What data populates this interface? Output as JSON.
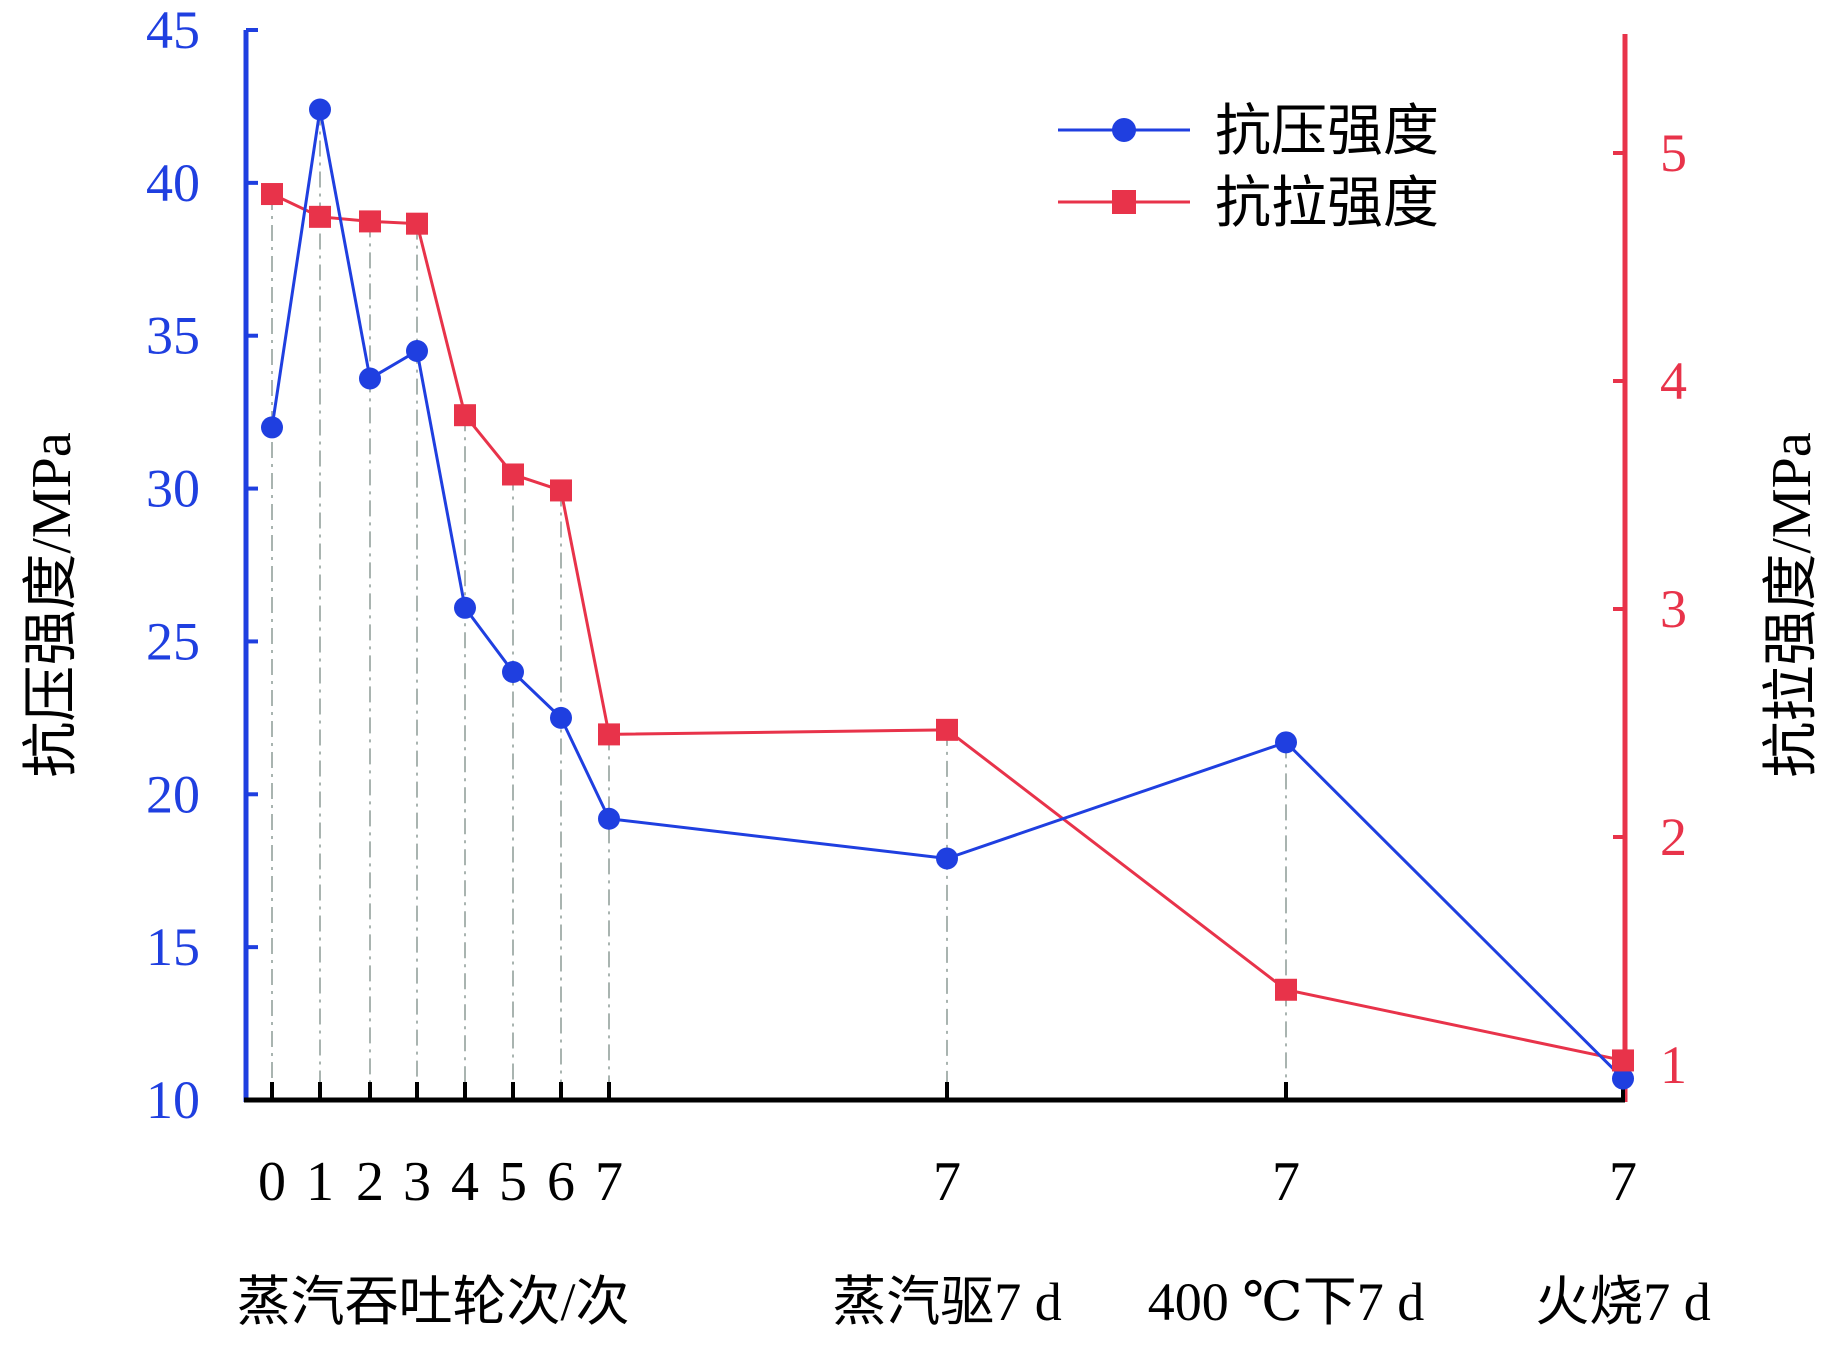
{
  "chart_data": {
    "type": "line",
    "y_left": {
      "label": "抗压强度/MPa",
      "ylim": [
        10,
        45
      ],
      "ticks": [
        10,
        15,
        20,
        25,
        30,
        35,
        40,
        45
      ]
    },
    "y_right": {
      "label": "抗拉强度/MPa",
      "ylim": [
        0.88,
        5.58
      ],
      "ticks": [
        1,
        2,
        3,
        4,
        5
      ]
    },
    "x_tick_labels": [
      "0",
      "1",
      "2",
      "3",
      "4",
      "5",
      "6",
      "7",
      "7",
      "7",
      "7"
    ],
    "x_group_labels": [
      "蒸汽吞吐轮次/次",
      "蒸汽驱7 d",
      "400 ℃下7 d",
      "火烧7 d"
    ],
    "series": [
      {
        "name": "抗压强度",
        "axis": "left",
        "marker": "circle",
        "values": [
          32.0,
          42.4,
          33.6,
          34.5,
          26.1,
          24.0,
          22.5,
          19.2,
          17.9,
          21.7,
          10.7
        ]
      },
      {
        "name": "抗拉强度",
        "axis": "right",
        "marker": "square",
        "values": [
          4.82,
          4.72,
          4.7,
          4.69,
          3.85,
          3.59,
          3.52,
          2.45,
          2.47,
          1.33,
          1.02
        ]
      }
    ],
    "legend_position": "top-right",
    "colors": {
      "left": "#1f3fe0",
      "right": "#e8334a",
      "grid": "#a9b4b0"
    }
  }
}
